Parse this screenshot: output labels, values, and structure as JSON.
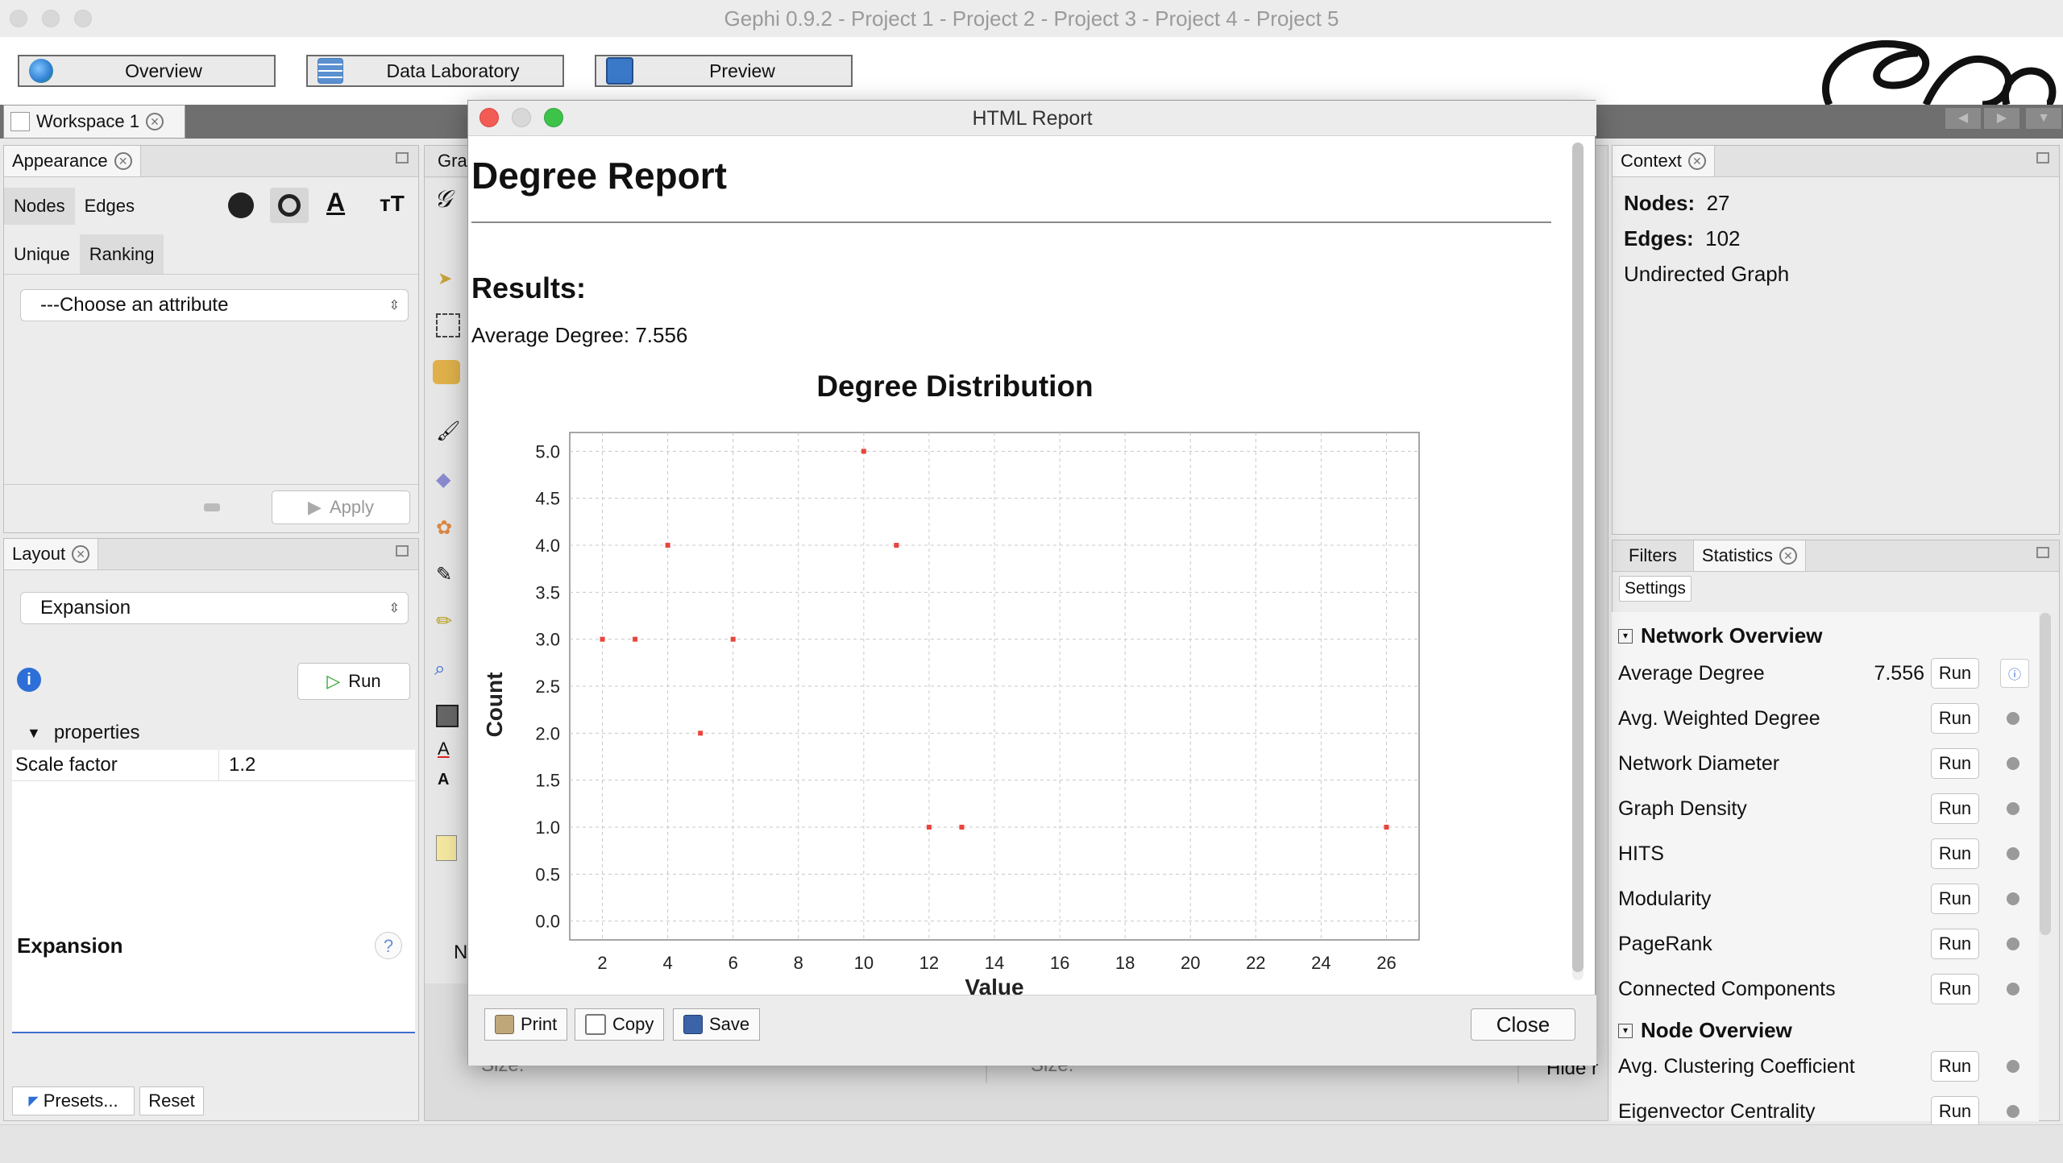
{
  "app": {
    "title": "Gephi 0.9.2 - Project 1 - Project 2 - Project 3 - Project 4 - Project 5"
  },
  "toolbar": {
    "overview": "Overview",
    "data_laboratory": "Data Laboratory",
    "preview": "Preview"
  },
  "workspace": {
    "tab": "Workspace 1"
  },
  "appearance": {
    "title": "Appearance",
    "tabs": [
      "Nodes",
      "Edges"
    ],
    "subtabs": [
      "Unique",
      "Ranking"
    ],
    "attribute_select": "---Choose an attribute",
    "apply": "Apply"
  },
  "layout": {
    "title": "Layout",
    "algorithm": "Expansion",
    "run": "Run",
    "properties": "properties",
    "prop_name": "Scale factor",
    "prop_value": "1.2",
    "description_title": "Expansion",
    "presets": "Presets...",
    "reset": "Reset"
  },
  "graph_panel": {
    "tab_partial": "Gra",
    "partial_n": "N",
    "size_label_1": "Size:",
    "size_label_2": "Size:",
    "hide_partial": "Hide r"
  },
  "context": {
    "title": "Context",
    "nodes_label": "Nodes:",
    "nodes_value": "27",
    "edges_label": "Edges:",
    "edges_value": "102",
    "graph_type": "Undirected Graph"
  },
  "statistics": {
    "tabs": [
      "Filters",
      "Statistics"
    ],
    "settings": "Settings",
    "network_overview": "Network Overview",
    "node_overview": "Node Overview",
    "run_label": "Run",
    "network_rows": [
      {
        "name": "Average Degree",
        "value": "7.556"
      },
      {
        "name": "Avg. Weighted Degree",
        "value": ""
      },
      {
        "name": "Network Diameter",
        "value": ""
      },
      {
        "name": "Graph Density",
        "value": ""
      },
      {
        "name": "HITS",
        "value": ""
      },
      {
        "name": "Modularity",
        "value": ""
      },
      {
        "name": "PageRank",
        "value": ""
      },
      {
        "name": "Connected Components",
        "value": ""
      }
    ],
    "node_rows": [
      {
        "name": "Avg. Clustering Coefficient"
      },
      {
        "name": "Eigenvector Centrality"
      }
    ]
  },
  "dialog": {
    "title": "HTML Report",
    "heading": "Degree Report",
    "results_label": "Results:",
    "average_degree_text": "Average Degree: 7.556",
    "print": "Print",
    "copy": "Copy",
    "save": "Save",
    "close": "Close"
  },
  "chart_data": {
    "type": "scatter",
    "title": "Degree Distribution",
    "xlabel": "Value",
    "ylabel": "Count",
    "xlim": [
      1,
      27
    ],
    "ylim": [
      -0.2,
      5.2
    ],
    "x_ticks": [
      2,
      4,
      6,
      8,
      10,
      12,
      14,
      16,
      18,
      20,
      22,
      24,
      26
    ],
    "y_ticks": [
      "0.0",
      "0.5",
      "1.0",
      "1.5",
      "2.0",
      "2.5",
      "3.0",
      "3.5",
      "4.0",
      "4.5",
      "5.0"
    ],
    "grid": true,
    "point_color": "#e8453c",
    "points": [
      {
        "x": 2,
        "y": 3
      },
      {
        "x": 3,
        "y": 3
      },
      {
        "x": 4,
        "y": 4
      },
      {
        "x": 5,
        "y": 2
      },
      {
        "x": 6,
        "y": 3
      },
      {
        "x": 10,
        "y": 5
      },
      {
        "x": 11,
        "y": 4
      },
      {
        "x": 12,
        "y": 1
      },
      {
        "x": 13,
        "y": 1
      },
      {
        "x": 26,
        "y": 1
      }
    ]
  }
}
